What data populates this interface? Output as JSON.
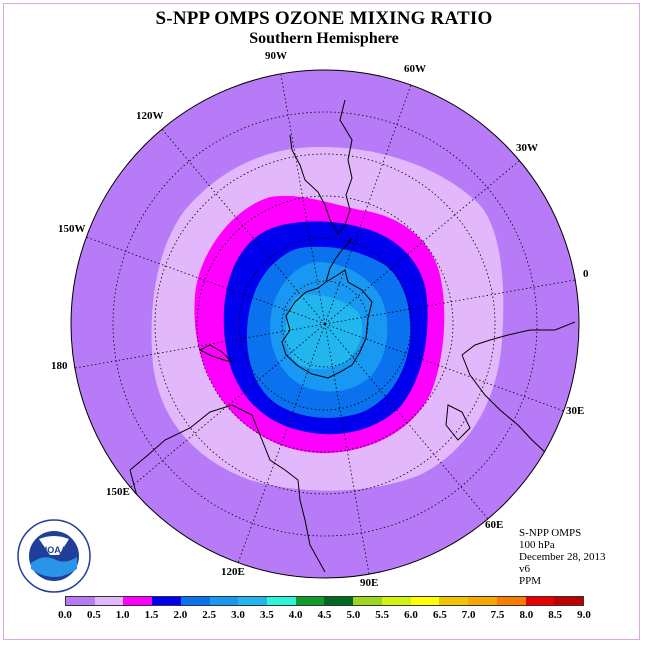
{
  "title": "S-NPP OMPS OZONE MIXING RATIO",
  "subtitle": "Southern Hemisphere",
  "logo_text": "NOAA",
  "logo_ring_text": "NATIONAL OCEANIC AND ATMOSPHERIC ADMINISTRATION • U.S. DEPARTMENT OF COMMERCE",
  "info": {
    "instrument": "S-NPP OMPS",
    "level": "100 hPa",
    "date": "December 28, 2013",
    "version": "v6",
    "units": "PPM"
  },
  "longitude_labels": [
    "90W",
    "60W",
    "30W",
    "0",
    "30E",
    "60E",
    "90E",
    "120E",
    "150E",
    "180",
    "150W",
    "120W"
  ],
  "colorbar": {
    "ticks": [
      "0.0",
      "0.5",
      "1.0",
      "1.5",
      "2.0",
      "2.5",
      "3.0",
      "3.5",
      "4.0",
      "4.5",
      "5.0",
      "5.5",
      "6.0",
      "6.5",
      "7.0",
      "7.5",
      "8.0",
      "8.5",
      "9.0"
    ],
    "colors": [
      "#b77bf7",
      "#e2b7fb",
      "#ff00ff",
      "#0000ee",
      "#0a72ef",
      "#1898f2",
      "#22b6ef",
      "#2ef3d9",
      "#109a2c",
      "#006a1e",
      "#9dd71c",
      "#d2f20e",
      "#ffff00",
      "#f2c400",
      "#f7a800",
      "#f77c00",
      "#e80000",
      "#bf0000",
      "#7a4a26"
    ]
  },
  "map_colors": {
    "band_0_0_5": "#b77bf7",
    "band_0_5_1_0": "#e2b7fb",
    "band_1_0_1_5": "#ff00ff",
    "band_1_5_2_0": "#0000ee",
    "band_2_0_2_5": "#0a72ef",
    "band_2_5_3_0": "#1898f2",
    "band_3_0_3_5": "#22b6ef"
  }
}
